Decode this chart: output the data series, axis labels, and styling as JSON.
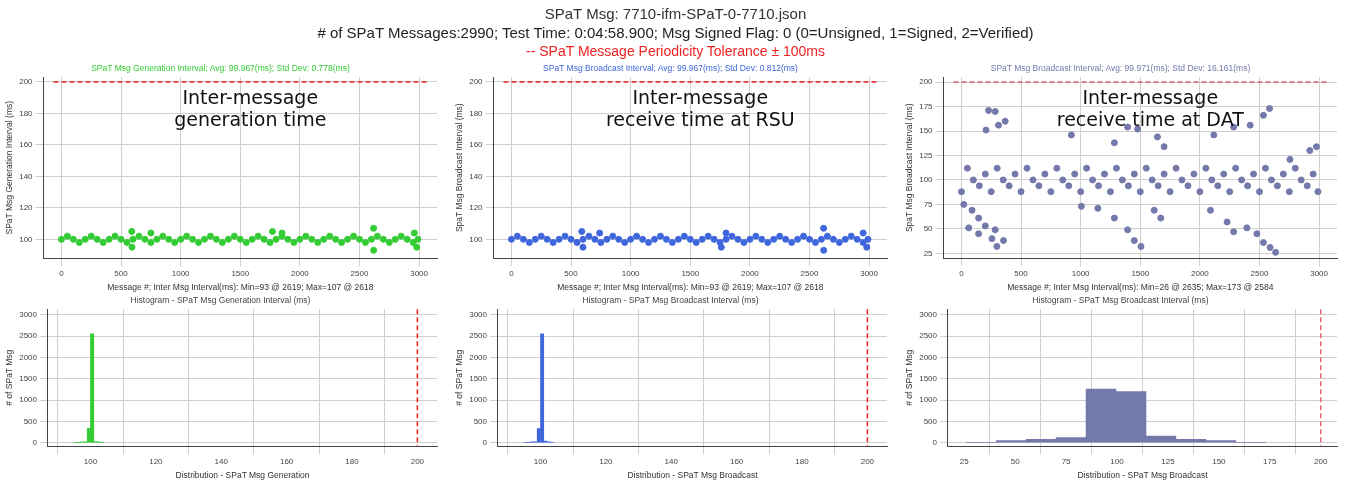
{
  "chart_data": [
    {
      "type": "other",
      "title": "SPaT Msg: 7710-ifm-SPaT-0-7710.json",
      "subtitle": "# of SPaT Messages:2990; Test Time: 0:04:58.900; Msg Signed Flag: 0 (0=Unsigned, 1=Signed, 2=Verified)",
      "annotations": [
        "-- SPaT Message Periodicity Tolerance ± 100ms"
      ]
    },
    {
      "type": "scatter",
      "title": "SPaT Msg Generation Interval; Avg: 99.967(ms); Std Dev: 0.778(ms)",
      "xlabel": "Message #; Inter Msg Interval(ms): Min=93 @ 2619; Max=107 @ 2618",
      "ylabel": "SPaT Msg Generation Interval (ms)",
      "annotations": [
        "Inter-message generation time"
      ],
      "marker": "circle",
      "grid": true,
      "xlim": [
        -150,
        3150
      ],
      "xticks": [
        0,
        500,
        1000,
        1500,
        2000,
        2500,
        3000
      ],
      "ylim": [
        88,
        203
      ],
      "yticks": [
        100,
        120,
        140,
        160,
        180,
        200
      ],
      "ref_lines": [
        {
          "axis": "y",
          "value": 200,
          "color": "#ee2222",
          "line_style": "dashed"
        }
      ],
      "series": [
        {
          "color": "#33cc33",
          "x": [
            0,
            50,
            100,
            150,
            200,
            250,
            300,
            350,
            400,
            450,
            500,
            550,
            600,
            650,
            700,
            750,
            800,
            850,
            900,
            950,
            1000,
            1050,
            1100,
            1150,
            1200,
            1250,
            1300,
            1350,
            1400,
            1450,
            1500,
            1550,
            1600,
            1650,
            1700,
            1750,
            1800,
            1850,
            1900,
            1950,
            2000,
            2050,
            2100,
            2150,
            2200,
            2250,
            2300,
            2350,
            2400,
            2450,
            2500,
            2550,
            2600,
            2650,
            2700,
            2750,
            2800,
            2850,
            2900,
            2950,
            2990,
            590,
            592,
            750,
            1770,
            1850,
            2618,
            2619,
            2980,
            2960
          ],
          "values": [
            100,
            102,
            100,
            98,
            100,
            102,
            100,
            98,
            100,
            102,
            100,
            98,
            100,
            102,
            100,
            98,
            100,
            102,
            100,
            98,
            100,
            102,
            100,
            98,
            100,
            102,
            100,
            98,
            100,
            102,
            100,
            98,
            100,
            102,
            100,
            98,
            100,
            102,
            100,
            98,
            100,
            102,
            100,
            98,
            100,
            102,
            100,
            98,
            100,
            102,
            100,
            98,
            100,
            102,
            100,
            98,
            100,
            102,
            100,
            98,
            100,
            105,
            95,
            104,
            105,
            104,
            107,
            93,
            95,
            104
          ]
        }
      ]
    },
    {
      "type": "scatter",
      "title": "SPaT Msg Broadcast Interval; Avg: 99.967(ms); Std Dev: 0.812(ms)",
      "xlabel": "Message #; Inter Msg Interval(ms): Min=93 @ 2619; Max=107 @ 2618",
      "ylabel": "SpaT Msg Broadcast Interval (ms)",
      "annotations": [
        "Inter-message receive time at RSU"
      ],
      "marker": "circle",
      "grid": true,
      "xlim": [
        -150,
        3150
      ],
      "xticks": [
        0,
        500,
        1000,
        1500,
        2000,
        2500,
        3000
      ],
      "ylim": [
        88,
        203
      ],
      "yticks": [
        100,
        120,
        140,
        160,
        180,
        200
      ],
      "ref_lines": [
        {
          "axis": "y",
          "value": 200,
          "color": "#ee2222",
          "line_style": "dashed"
        }
      ],
      "series": [
        {
          "color": "#3f66dd",
          "x": [
            0,
            50,
            100,
            150,
            200,
            250,
            300,
            350,
            400,
            450,
            500,
            550,
            600,
            650,
            700,
            750,
            800,
            850,
            900,
            950,
            1000,
            1050,
            1100,
            1150,
            1200,
            1250,
            1300,
            1350,
            1400,
            1450,
            1500,
            1550,
            1600,
            1650,
            1700,
            1750,
            1800,
            1850,
            1900,
            1950,
            2000,
            2050,
            2100,
            2150,
            2200,
            2250,
            2300,
            2350,
            2400,
            2450,
            2500,
            2550,
            2600,
            2650,
            2700,
            2750,
            2800,
            2850,
            2900,
            2950,
            2990,
            590,
            600,
            740,
            1760,
            1800,
            2618,
            2619,
            2980,
            2950
          ],
          "values": [
            100,
            102,
            100,
            98,
            100,
            102,
            100,
            98,
            100,
            102,
            100,
            98,
            100,
            102,
            100,
            98,
            100,
            102,
            100,
            98,
            100,
            102,
            100,
            98,
            100,
            102,
            100,
            98,
            100,
            102,
            100,
            98,
            100,
            102,
            100,
            98,
            100,
            102,
            100,
            98,
            100,
            102,
            100,
            98,
            100,
            102,
            100,
            98,
            100,
            102,
            100,
            98,
            100,
            102,
            100,
            98,
            100,
            102,
            100,
            98,
            100,
            105,
            95,
            104,
            95,
            104,
            107,
            93,
            95,
            104
          ]
        }
      ]
    },
    {
      "type": "scatter",
      "title": "SPaT Msg Broadcast Interval; Avg: 99.971(ms); Std Dev: 16.161(ms)",
      "xlabel": "Message #; Inter Msg Interval(ms): Min=26 @ 2635; Max=173 @ 2584",
      "ylabel": "SpaT Msg Broadcast Interval (ms)",
      "annotations": [
        "Inter-message receive time at DAT"
      ],
      "marker": "circle",
      "grid": true,
      "xlim": [
        -150,
        3150
      ],
      "xticks": [
        0,
        500,
        1000,
        1500,
        2000,
        2500,
        3000
      ],
      "ylim": [
        20,
        205
      ],
      "yticks": [
        25,
        50,
        75,
        100,
        125,
        150,
        175,
        200
      ],
      "ref_lines": [
        {
          "axis": "y",
          "value": 200,
          "color": "#dd6677",
          "line_style": "dashed"
        }
      ],
      "series": [
        {
          "color": "#7479ab",
          "x": [
            0,
            50,
            100,
            150,
            200,
            250,
            300,
            350,
            400,
            450,
            500,
            550,
            600,
            650,
            700,
            750,
            800,
            850,
            900,
            950,
            1000,
            1050,
            1100,
            1150,
            1200,
            1250,
            1300,
            1350,
            1400,
            1450,
            1500,
            1550,
            1600,
            1650,
            1700,
            1750,
            1800,
            1850,
            1900,
            1950,
            2000,
            2050,
            2100,
            2150,
            2200,
            2250,
            2300,
            2350,
            2400,
            2450,
            2500,
            2550,
            2600,
            2650,
            2700,
            2750,
            2800,
            2850,
            2900,
            2950,
            2990,
            228,
            283,
            311,
            206,
            367,
            20,
            89,
            144,
            61,
            144,
            200,
            256,
            297,
            353,
            283,
            922,
            1394,
            1478,
            1283,
            1644,
            1700,
            1283,
            1394,
            1450,
            1506,
            1144,
            1617,
            1672,
            1006,
            2584,
            2533,
            2422,
            2283,
            2117,
            2756,
            2922,
            2978,
            2283,
            2394,
            2478,
            2533,
            2635,
            2589,
            2228,
            2089
          ],
          "values": [
            88,
            112,
            100,
            94,
            106,
            88,
            112,
            100,
            94,
            106,
            88,
            112,
            100,
            94,
            106,
            88,
            112,
            100,
            94,
            106,
            88,
            112,
            100,
            94,
            106,
            88,
            112,
            100,
            94,
            106,
            88,
            112,
            100,
            94,
            106,
            88,
            112,
            100,
            94,
            106,
            88,
            112,
            100,
            94,
            106,
            88,
            112,
            100,
            94,
            106,
            88,
            112,
            100,
            94,
            106,
            88,
            112,
            100,
            94,
            106,
            88,
            171,
            170,
            156,
            151,
            160,
            75,
            69,
            61,
            51,
            45,
            53,
            40,
            32,
            38,
            49,
            146,
            154,
            152,
            138,
            144,
            134,
            61,
            49,
            38,
            32,
            71,
            69,
            61,
            73,
            173,
            166,
            156,
            154,
            146,
            121,
            130,
            134,
            47,
            51,
            45,
            36,
            26,
            31,
            57,
            69
          ]
        }
      ]
    },
    {
      "type": "histogram",
      "title": "Histogram - SPaT Msg Generation Interval (ms)",
      "xlabel": "Distribution - SPaT Msg Generation",
      "ylabel": "# of SPaT Msg",
      "grid": true,
      "xlim": [
        87,
        206
      ],
      "xticks": [
        100,
        120,
        140,
        160,
        180,
        200
      ],
      "ylim": [
        -80,
        3130
      ],
      "yticks": [
        0,
        500,
        1000,
        1500,
        2000,
        2500,
        3000
      ],
      "ref_lines": [
        {
          "axis": "x",
          "value": 200,
          "color": "#ee2222",
          "line_style": "dashed"
        }
      ],
      "color": "#33cc33",
      "bins": [
        95,
        96,
        97,
        98,
        99,
        100,
        101,
        102,
        103,
        104
      ],
      "values": [
        10,
        10,
        20,
        20,
        340,
        2550,
        30,
        20,
        10
      ]
    },
    {
      "type": "histogram",
      "title": "Histogram - SPaT Msg Broadcast Interval (ms)",
      "xlabel": "Distribution - SPaT Msg Broadcast",
      "ylabel": "# of SPaT Msg",
      "grid": true,
      "xlim": [
        87,
        206
      ],
      "xticks": [
        100,
        120,
        140,
        160,
        180,
        200
      ],
      "ylim": [
        -80,
        3130
      ],
      "yticks": [
        0,
        500,
        1000,
        1500,
        2000,
        2500,
        3000
      ],
      "ref_lines": [
        {
          "axis": "x",
          "value": 200,
          "color": "#ee2222",
          "line_style": "dashed"
        }
      ],
      "color": "#3f66dd",
      "bins": [
        95,
        96,
        97,
        98,
        99,
        100,
        101,
        102,
        103,
        104
      ],
      "values": [
        10,
        10,
        20,
        20,
        330,
        2550,
        40,
        20,
        10
      ]
    },
    {
      "type": "histogram",
      "title": "Histogram - SPaT Msg Broadcast Interval (ms)",
      "xlabel": "Distribution - SPaT Msg Broadcast",
      "ylabel": "# of SPaT Msg",
      "grid": true,
      "xlim": [
        17,
        208
      ],
      "xticks": [
        25,
        50,
        75,
        100,
        125,
        150,
        175,
        200
      ],
      "ylim": [
        -80,
        3130
      ],
      "yticks": [
        0,
        500,
        1000,
        1500,
        2000,
        2500,
        3000
      ],
      "ref_lines": [
        {
          "axis": "x",
          "value": 200,
          "color": "#dd6677",
          "line_style": "dashed"
        }
      ],
      "color": "#7479ab",
      "bins": [
        26,
        40.7,
        55.4,
        70.1,
        84.8,
        99.5,
        114.2,
        128.9,
        143.6,
        158.3,
        173
      ],
      "values": [
        10,
        50,
        80,
        120,
        1260,
        1200,
        160,
        80,
        50,
        10
      ]
    }
  ]
}
